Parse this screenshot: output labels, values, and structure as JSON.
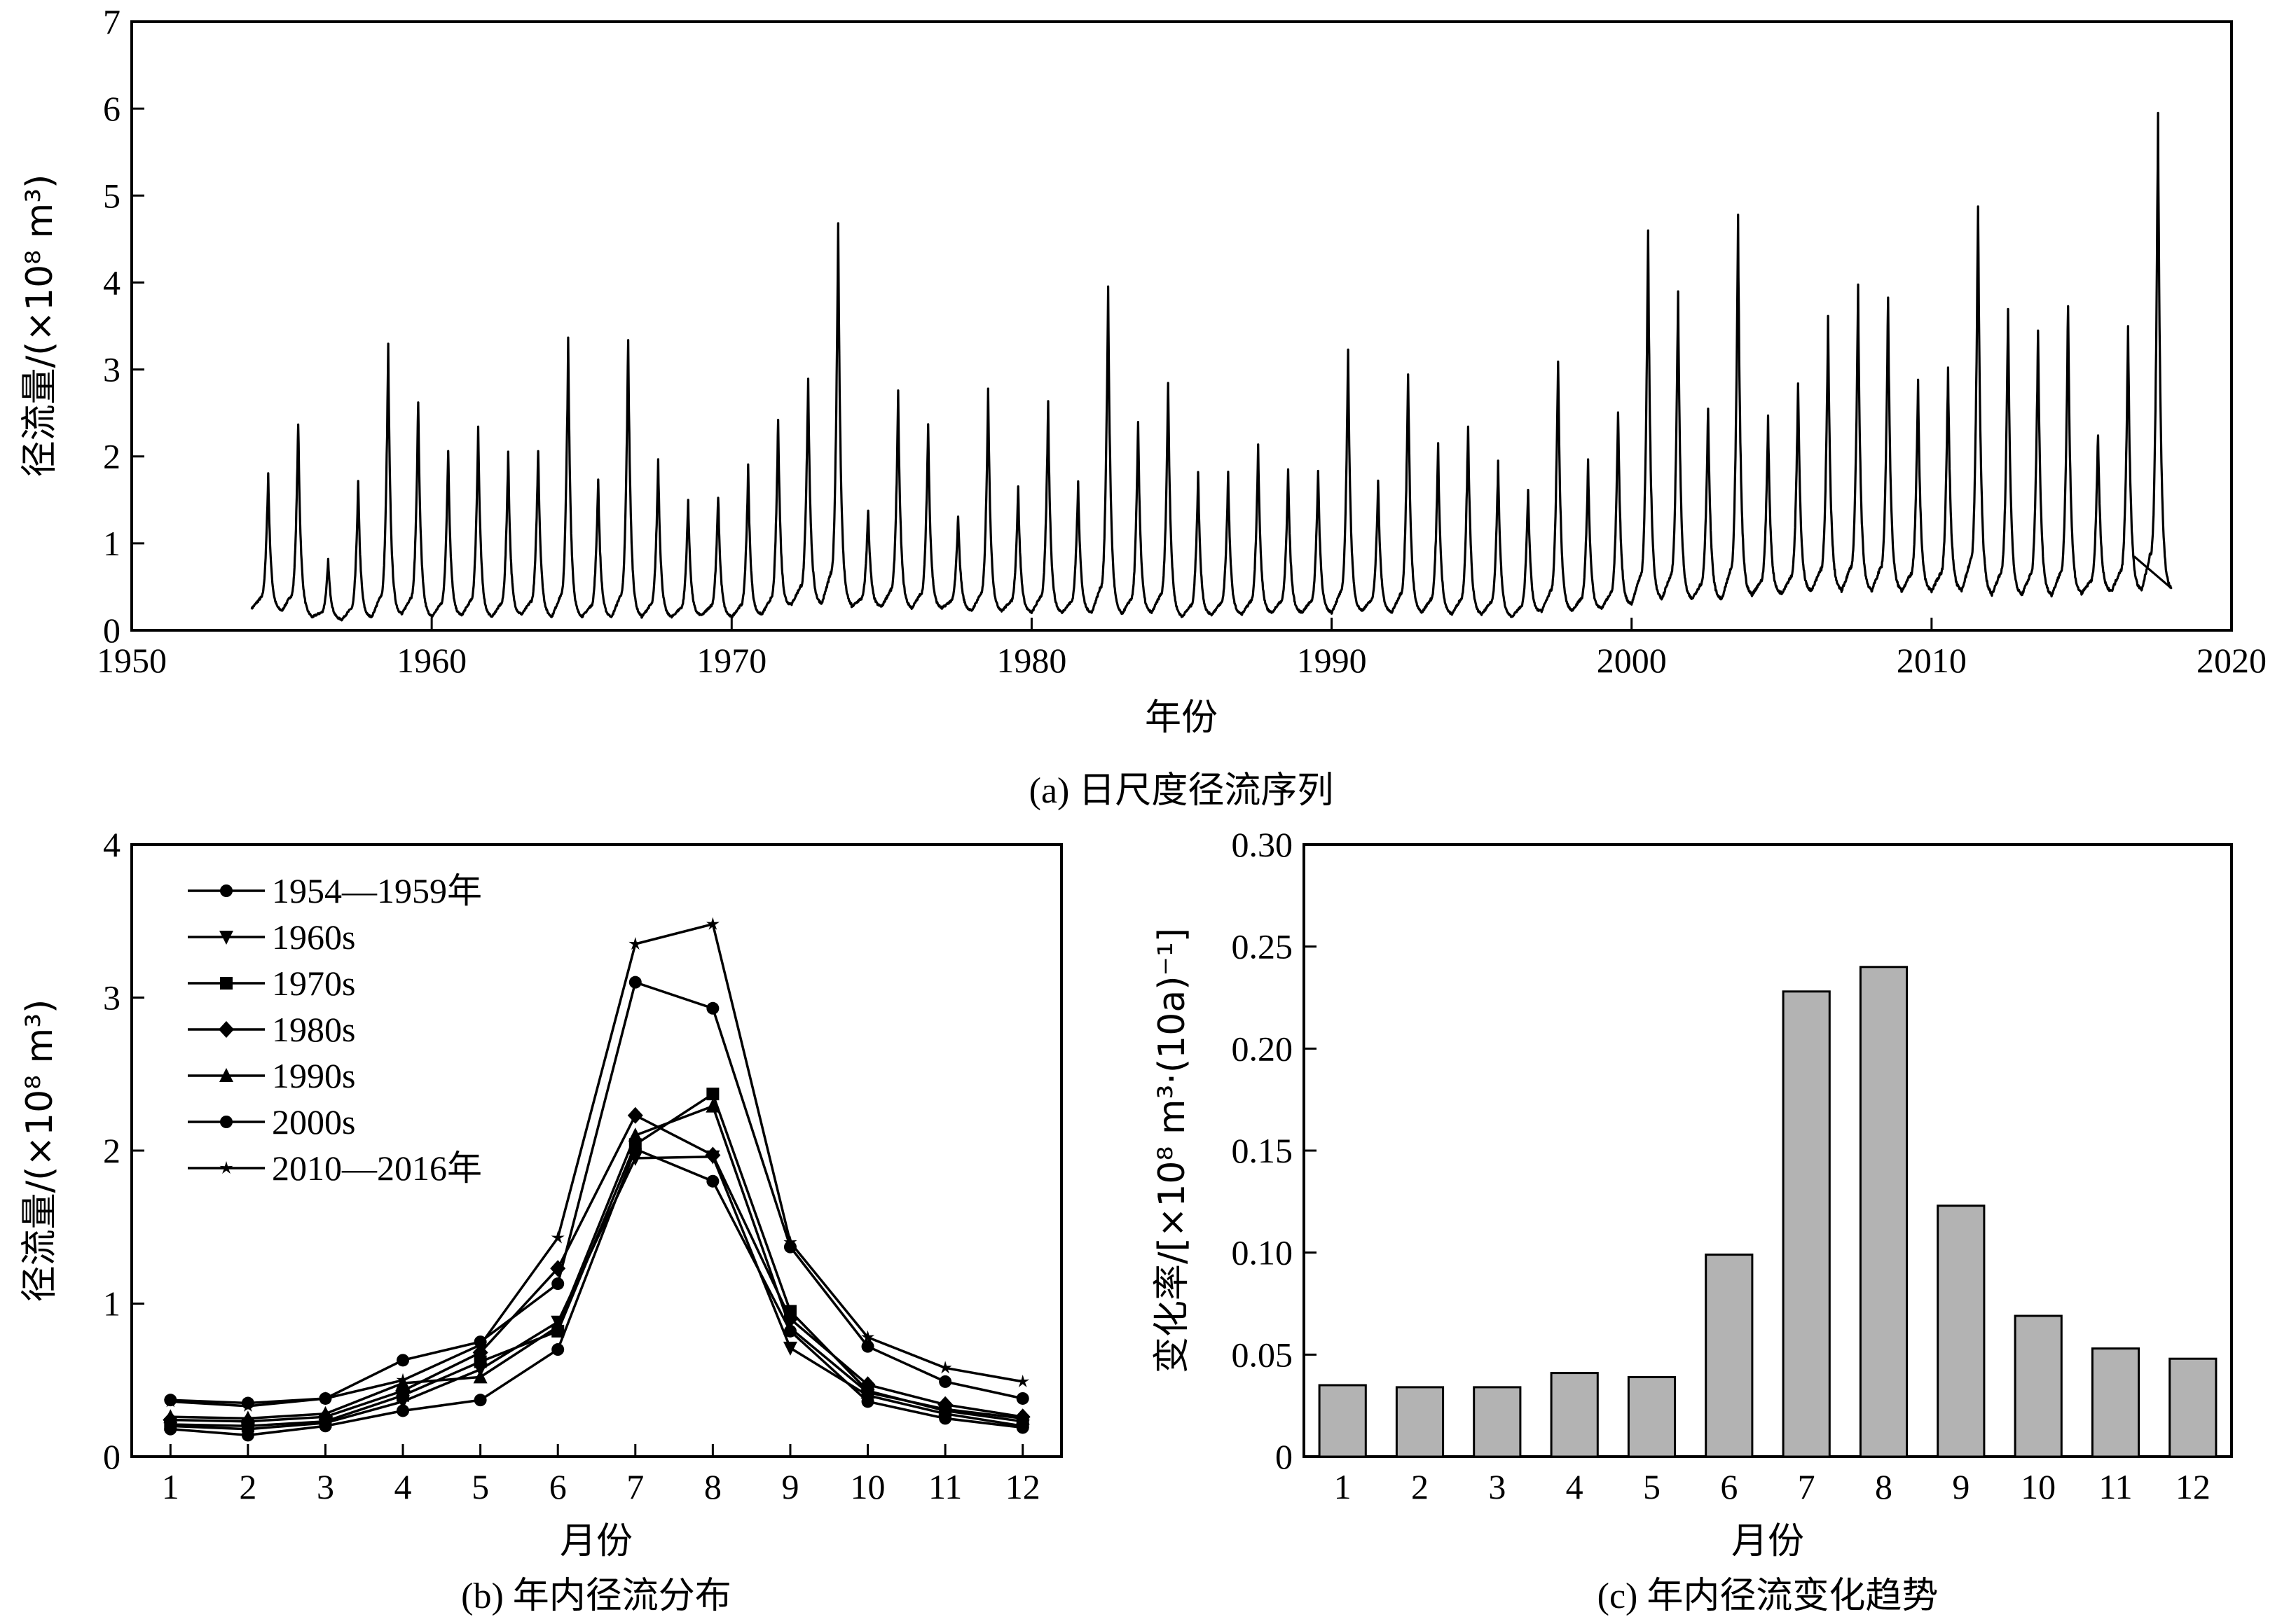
{
  "chart_data": [
    {
      "id": "a",
      "type": "line",
      "caption": "(a) 日尺度径流序列",
      "xlabel": "年份",
      "ylabel": "径流量/(×10⁸ m³)",
      "xlim": [
        1950,
        2020
      ],
      "ylim": [
        0,
        7
      ],
      "xticks": [
        "1950",
        "1960",
        "1970",
        "1980",
        "1990",
        "2000",
        "2010",
        "2020"
      ],
      "yticks": [
        "0",
        "1",
        "2",
        "3",
        "4",
        "5",
        "6",
        "7"
      ],
      "start_year": 1954,
      "end_year": 2016,
      "annual_peaks": [
        1.8,
        2.4,
        0.8,
        1.7,
        3.25,
        2.65,
        2.1,
        2.35,
        2.05,
        2.1,
        3.3,
        1.75,
        3.38,
        1.97,
        1.5,
        1.55,
        1.87,
        2.45,
        2.92,
        4.7,
        1.4,
        2.7,
        2.37,
        1.33,
        2.72,
        1.65,
        2.6,
        1.72,
        3.95,
        2.4,
        2.87,
        1.8,
        1.8,
        2.13,
        1.85,
        1.85,
        3.23,
        1.7,
        3.0,
        2.13,
        2.38,
        1.92,
        1.65,
        3.15,
        1.93,
        2.52,
        4.62,
        3.92,
        2.58,
        4.7,
        2.42,
        2.84,
        3.55,
        3.9,
        3.85,
        2.84,
        3.02,
        4.93,
        3.72,
        3.48,
        3.8,
        2.28,
        3.48,
        5.95
      ],
      "annual_baseflows": [
        0.25,
        0.22,
        0.15,
        0.12,
        0.15,
        0.18,
        0.15,
        0.17,
        0.15,
        0.18,
        0.15,
        0.15,
        0.15,
        0.15,
        0.15,
        0.17,
        0.15,
        0.18,
        0.3,
        0.3,
        0.27,
        0.27,
        0.25,
        0.25,
        0.22,
        0.22,
        0.2,
        0.2,
        0.2,
        0.18,
        0.2,
        0.15,
        0.18,
        0.18,
        0.2,
        0.2,
        0.2,
        0.22,
        0.2,
        0.2,
        0.18,
        0.18,
        0.15,
        0.22,
        0.22,
        0.25,
        0.3,
        0.35,
        0.35,
        0.35,
        0.4,
        0.42,
        0.45,
        0.45,
        0.45,
        0.45,
        0.45,
        0.45,
        0.4,
        0.4,
        0.4,
        0.42,
        0.45,
        0.45
      ],
      "end_value": 0.85
    },
    {
      "id": "b",
      "type": "line",
      "caption": "(b) 年内径流分布",
      "xlabel": "月份",
      "ylabel": "径流量/(×10⁸ m³)",
      "xlim": [
        0.5,
        12.5
      ],
      "ylim": [
        0,
        4
      ],
      "categories": [
        "1",
        "2",
        "3",
        "4",
        "5",
        "6",
        "7",
        "8",
        "9",
        "10",
        "11",
        "12"
      ],
      "yticks": [
        "0",
        "1",
        "2",
        "3",
        "4"
      ],
      "legend_position": "top-left",
      "series": [
        {
          "name": "1954—1959年",
          "marker": "circle",
          "values": [
            0.18,
            0.14,
            0.2,
            0.3,
            0.37,
            0.7,
            2.01,
            1.8,
            0.82,
            0.36,
            0.25,
            0.19
          ]
        },
        {
          "name": "1960s",
          "marker": "triangle-down",
          "values": [
            0.2,
            0.18,
            0.22,
            0.36,
            0.57,
            0.88,
            1.95,
            1.96,
            0.71,
            0.4,
            0.28,
            0.2
          ]
        },
        {
          "name": "1970s",
          "marker": "square",
          "values": [
            0.21,
            0.2,
            0.23,
            0.4,
            0.62,
            0.82,
            2.04,
            2.37,
            0.95,
            0.43,
            0.3,
            0.23
          ]
        },
        {
          "name": "1980s",
          "marker": "diamond",
          "values": [
            0.24,
            0.23,
            0.26,
            0.43,
            0.68,
            1.23,
            2.23,
            1.97,
            0.9,
            0.47,
            0.34,
            0.26
          ]
        },
        {
          "name": "1990s",
          "marker": "triangle-up",
          "values": [
            0.26,
            0.25,
            0.28,
            0.48,
            0.52,
            0.85,
            2.1,
            2.29,
            0.84,
            0.42,
            0.31,
            0.25
          ]
        },
        {
          "name": "2000s",
          "marker": "circle",
          "values": [
            0.37,
            0.35,
            0.38,
            0.63,
            0.75,
            1.13,
            3.1,
            2.93,
            1.37,
            0.72,
            0.49,
            0.38
          ]
        },
        {
          "name": "2010—2016年",
          "marker": "star",
          "values": [
            0.36,
            0.33,
            0.38,
            0.5,
            0.73,
            1.43,
            3.35,
            3.48,
            1.4,
            0.78,
            0.58,
            0.49
          ]
        }
      ]
    },
    {
      "id": "c",
      "type": "bar",
      "caption": "(c) 年内径流变化趋势",
      "xlabel": "月份",
      "ylabel": "变化率/[×10⁸ m³·(10a)⁻¹]",
      "ylim": [
        0,
        0.3
      ],
      "categories": [
        "1",
        "2",
        "3",
        "4",
        "5",
        "6",
        "7",
        "8",
        "9",
        "10",
        "11",
        "12"
      ],
      "yticks": [
        "0",
        "0.05",
        "0.10",
        "0.15",
        "0.20",
        "0.25",
        "0.30"
      ],
      "values": [
        0.035,
        0.034,
        0.034,
        0.041,
        0.039,
        0.099,
        0.228,
        0.24,
        0.123,
        0.069,
        0.053,
        0.048
      ],
      "bar_color": "#b3b3b3"
    }
  ]
}
